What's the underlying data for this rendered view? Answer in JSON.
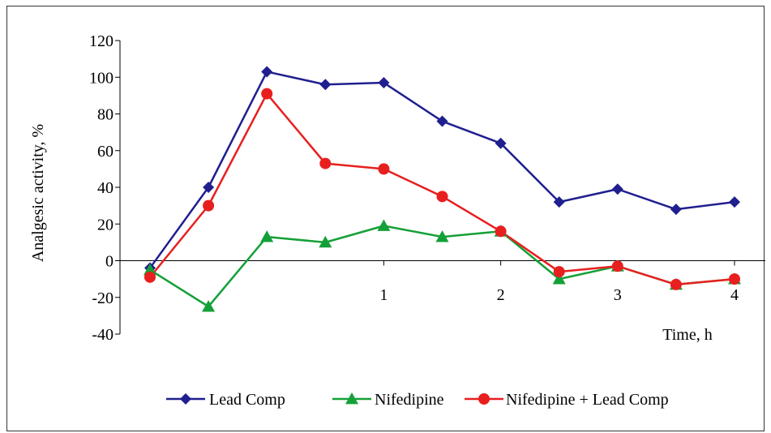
{
  "chart_data": {
    "type": "line",
    "title": "",
    "xlabel": "Time, h",
    "ylabel": "Analgesic activity, %",
    "ylim": [
      -40,
      120
    ],
    "yticks": [
      -40,
      -20,
      0,
      20,
      40,
      60,
      80,
      100,
      120
    ],
    "ytick_labels": [
      "-40",
      "-20",
      "0",
      "20",
      "40",
      "60",
      "80",
      "100",
      "120"
    ],
    "xlim": [
      -1,
      4.25
    ],
    "xticks": [
      1,
      2,
      3,
      4
    ],
    "xtick_labels": [
      "1",
      "2",
      "3",
      "4"
    ],
    "x": [
      -1,
      -0.5,
      0,
      0.5,
      1,
      1.5,
      2,
      2.5,
      3,
      3.5,
      4
    ],
    "grid": false,
    "legend_position": "bottom",
    "series": [
      {
        "name": "Lead Comp",
        "color": "#1f1f8f",
        "marker": "diamond",
        "values": [
          -4,
          40,
          103,
          96,
          97,
          76,
          64,
          32,
          39,
          28,
          32
        ]
      },
      {
        "name": "Nifedipine",
        "color": "#14a038",
        "marker": "triangle",
        "values": [
          -5,
          -25,
          13,
          10,
          19,
          13,
          16,
          -10,
          -3,
          -13,
          -10
        ]
      },
      {
        "name": "Nifedipine + Lead Comp",
        "color": "#e81f1f",
        "marker": "circle",
        "values": [
          -9,
          30,
          91,
          53,
          50,
          35,
          16,
          -6,
          -3,
          -13,
          -10
        ]
      }
    ]
  }
}
